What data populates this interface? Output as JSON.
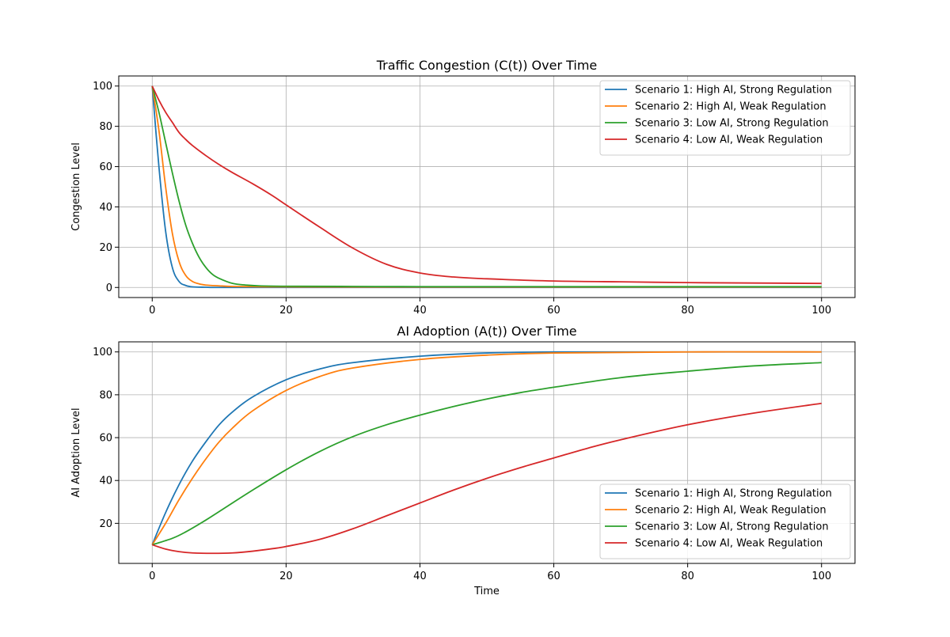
{
  "chart_data": [
    {
      "type": "line",
      "title": "Traffic Congestion (C(t)) Over Time",
      "xlabel": "",
      "ylabel": "Congestion Level",
      "xlim": [
        -5,
        105
      ],
      "ylim": [
        -5,
        105
      ],
      "xticks": [
        0,
        20,
        40,
        60,
        80,
        100
      ],
      "yticks": [
        0,
        20,
        40,
        60,
        80,
        100
      ],
      "grid": true,
      "legend_position": "top-right",
      "series": [
        {
          "name": "Scenario 1: High AI, Strong Regulation",
          "color": "#1f77b4",
          "x": [
            0,
            1,
            2,
            3,
            4,
            5,
            6,
            8,
            10,
            20,
            40,
            60,
            80,
            100
          ],
          "y": [
            100,
            60,
            28,
            10,
            3,
            1,
            0.3,
            0.1,
            0,
            0,
            0,
            0,
            0,
            0
          ]
        },
        {
          "name": "Scenario 2: High AI, Weak Regulation",
          "color": "#ff7f0e",
          "x": [
            0,
            1,
            2,
            3,
            4,
            5,
            6,
            7,
            8,
            10,
            12,
            15,
            20,
            40,
            60,
            80,
            100
          ],
          "y": [
            100,
            78,
            50,
            27,
            13,
            6,
            3,
            1.8,
            1.2,
            0.8,
            0.5,
            0.4,
            0.3,
            0.2,
            0.2,
            0.2,
            0.2
          ]
        },
        {
          "name": "Scenario 3: Low AI, Strong Regulation",
          "color": "#2ca02c",
          "x": [
            0,
            1,
            2,
            3,
            4,
            5,
            6,
            7,
            8,
            9,
            10,
            12,
            14,
            16,
            20,
            30,
            40,
            60,
            80,
            100
          ],
          "y": [
            100,
            87,
            72,
            57,
            43,
            31,
            22,
            15,
            10,
            6.5,
            4.5,
            2,
            1.2,
            0.8,
            0.6,
            0.5,
            0.4,
            0.4,
            0.4,
            0.4
          ]
        },
        {
          "name": "Scenario 4: Low AI, Weak Regulation",
          "color": "#d62728",
          "x": [
            0,
            1,
            2,
            3,
            4,
            5,
            6,
            8,
            10,
            12,
            15,
            18,
            20,
            25,
            30,
            35,
            40,
            45,
            50,
            60,
            70,
            80,
            90,
            100
          ],
          "y": [
            100,
            93,
            87,
            82,
            77,
            73.5,
            70.5,
            65.5,
            61,
            57,
            51.5,
            45.5,
            41,
            30,
            19.5,
            11.5,
            7.2,
            5.2,
            4.3,
            3.2,
            2.8,
            2.4,
            2.2,
            2
          ]
        }
      ]
    },
    {
      "type": "line",
      "title": "AI Adoption (A(t)) Over Time",
      "xlabel": "Time",
      "ylabel": "AI Adoption Level",
      "xlim": [
        -5,
        105
      ],
      "ylim": [
        1.3,
        104.7
      ],
      "xticks": [
        0,
        20,
        40,
        60,
        80,
        100
      ],
      "yticks": [
        20,
        40,
        60,
        80,
        100
      ],
      "grid": true,
      "legend_position": "lower-right",
      "series": [
        {
          "name": "Scenario 1: High AI, Strong Regulation",
          "color": "#1f77b4",
          "x": [
            0,
            2,
            4,
            6,
            8,
            10,
            12,
            15,
            20,
            25,
            30,
            40,
            50,
            60,
            80,
            100
          ],
          "y": [
            10,
            25,
            38,
            49,
            58,
            66,
            72,
            79,
            87,
            92,
            95,
            98,
            99.5,
            100,
            100,
            100
          ]
        },
        {
          "name": "Scenario 2: High AI, Weak Regulation",
          "color": "#ff7f0e",
          "x": [
            0,
            2,
            4,
            6,
            8,
            10,
            12,
            15,
            20,
            25,
            30,
            40,
            50,
            60,
            80,
            100
          ],
          "y": [
            10,
            20,
            31,
            41,
            50,
            58,
            64.5,
            72.5,
            82,
            88.5,
            92.5,
            96.5,
            98.5,
            99.5,
            100,
            100
          ]
        },
        {
          "name": "Scenario 3: Low AI, Strong Regulation",
          "color": "#2ca02c",
          "x": [
            0,
            3,
            5,
            8,
            10,
            15,
            20,
            25,
            30,
            35,
            40,
            45,
            50,
            55,
            60,
            70,
            80,
            90,
            100
          ],
          "y": [
            10,
            13,
            16,
            21.5,
            25.5,
            35.5,
            45,
            53.5,
            60.5,
            66,
            70.5,
            74.5,
            78,
            81,
            83.5,
            88,
            91,
            93.5,
            95
          ]
        },
        {
          "name": "Scenario 4: Low AI, Weak Regulation",
          "color": "#d62728",
          "x": [
            0,
            2,
            4,
            6,
            9,
            12,
            15,
            18,
            20,
            25,
            30,
            35,
            40,
            45,
            50,
            55,
            60,
            65,
            70,
            80,
            90,
            100
          ],
          "y": [
            10,
            8,
            6.8,
            6.2,
            6,
            6.2,
            7,
            8.2,
            9.2,
            12.5,
            17.5,
            23.5,
            29.5,
            35.5,
            41,
            46,
            50.5,
            55,
            59,
            66,
            71.5,
            76
          ]
        }
      ]
    }
  ]
}
